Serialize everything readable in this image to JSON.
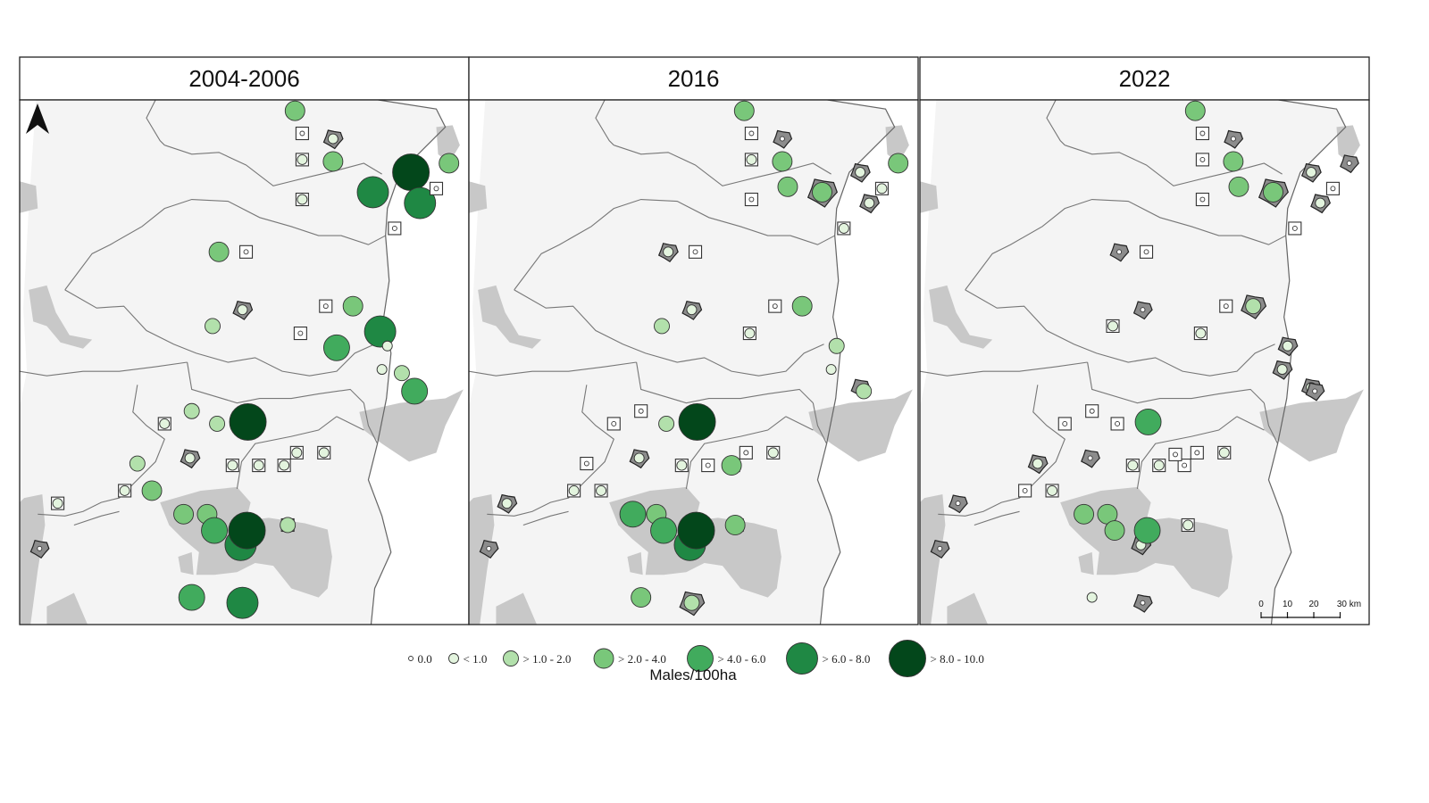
{
  "panels": [
    {
      "title": "2004-2006",
      "sites": [
        {
          "id": "n1",
          "cls": 3
        },
        {
          "id": "n2",
          "cls": 0,
          "box": true
        },
        {
          "id": "n3",
          "cls": 1,
          "poly": true
        },
        {
          "id": "n4",
          "cls": 1,
          "box": true
        },
        {
          "id": "n5",
          "cls": 3
        },
        {
          "id": "n6",
          "cls": 6
        },
        {
          "id": "n7",
          "cls": 3
        },
        {
          "id": "n8",
          "cls": 5
        },
        {
          "id": "n9",
          "cls": 5
        },
        {
          "id": "n10",
          "cls": 0,
          "box": true
        },
        {
          "id": "n11",
          "cls": 1,
          "box": true
        },
        {
          "id": "n12",
          "cls": 0,
          "box": true
        },
        {
          "id": "c1",
          "cls": 3
        },
        {
          "id": "c2",
          "cls": 0,
          "box": true
        },
        {
          "id": "c3",
          "cls": 1,
          "poly": true
        },
        {
          "id": "c4",
          "cls": 2
        },
        {
          "id": "c5",
          "cls": 0,
          "box": true
        },
        {
          "id": "c6",
          "cls": 3
        },
        {
          "id": "c7",
          "cls": 0,
          "box": true
        },
        {
          "id": "c8",
          "cls": 4
        },
        {
          "id": "e1",
          "cls": 5
        },
        {
          "id": "e2",
          "cls": 1
        },
        {
          "id": "e3",
          "cls": 1
        },
        {
          "id": "e4",
          "cls": 2
        },
        {
          "id": "e5",
          "cls": 4
        },
        {
          "id": "s1",
          "cls": 1,
          "box": true
        },
        {
          "id": "s2",
          "cls": 2
        },
        {
          "id": "s3",
          "cls": 2
        },
        {
          "id": "s4",
          "cls": 6
        },
        {
          "id": "s5",
          "cls": 2
        },
        {
          "id": "s6",
          "cls": 1,
          "poly": true
        },
        {
          "id": "s7",
          "cls": 1,
          "box": true
        },
        {
          "id": "s8",
          "cls": 1,
          "box": true
        },
        {
          "id": "s9",
          "cls": 1,
          "box": true
        },
        {
          "id": "s10",
          "cls": 1,
          "box": true
        },
        {
          "id": "s11",
          "cls": 1,
          "box": true
        },
        {
          "id": "s12",
          "cls": 1,
          "box": true
        },
        {
          "id": "s13",
          "cls": 3
        },
        {
          "id": "w1",
          "cls": 1,
          "box": true
        },
        {
          "id": "b1",
          "cls": 3
        },
        {
          "id": "b2",
          "cls": 3
        },
        {
          "id": "b3",
          "cls": 4
        },
        {
          "id": "b4",
          "cls": 5
        },
        {
          "id": "b5",
          "cls": 6
        },
        {
          "id": "b6",
          "cls": 2,
          "box": true
        },
        {
          "id": "w2",
          "cls": 0,
          "poly": true
        },
        {
          "id": "b7",
          "cls": 4
        },
        {
          "id": "b8",
          "cls": 5
        }
      ]
    },
    {
      "title": "2016",
      "sites": [
        {
          "id": "n1",
          "cls": 3
        },
        {
          "id": "n2",
          "cls": 0,
          "box": true
        },
        {
          "id": "n3",
          "cls": 0,
          "poly": true
        },
        {
          "id": "n4",
          "cls": 1,
          "box": true
        },
        {
          "id": "n5",
          "cls": 3
        },
        {
          "id": "n7",
          "cls": 3
        },
        {
          "id": "n8",
          "cls": 3,
          "poly": true
        },
        {
          "id": "n13",
          "cls": 3
        },
        {
          "id": "n9",
          "cls": 1,
          "poly": true
        },
        {
          "id": "n6",
          "cls": 1,
          "poly": true
        },
        {
          "id": "n14",
          "cls": 1,
          "box": true
        },
        {
          "id": "n11",
          "cls": 0,
          "box": true
        },
        {
          "id": "n12",
          "cls": 1,
          "box": true
        },
        {
          "id": "c1",
          "cls": 1,
          "poly": true
        },
        {
          "id": "c2",
          "cls": 0,
          "box": true
        },
        {
          "id": "c3",
          "cls": 1,
          "poly": true
        },
        {
          "id": "c4",
          "cls": 2
        },
        {
          "id": "c5",
          "cls": 0,
          "box": true
        },
        {
          "id": "c6",
          "cls": 3
        },
        {
          "id": "c7",
          "cls": 1,
          "box": true
        },
        {
          "id": "e2",
          "cls": 2
        },
        {
          "id": "e3",
          "cls": 1
        },
        {
          "id": "e6",
          "cls": 0,
          "poly": true
        },
        {
          "id": "e5",
          "cls": 2
        },
        {
          "id": "s1",
          "cls": 0,
          "box": true
        },
        {
          "id": "s2",
          "cls": 0,
          "box": true
        },
        {
          "id": "s3",
          "cls": 2
        },
        {
          "id": "s4",
          "cls": 6
        },
        {
          "id": "s5",
          "cls": 0,
          "box": true
        },
        {
          "id": "s6",
          "cls": 1,
          "poly": true
        },
        {
          "id": "s7",
          "cls": 1,
          "box": true
        },
        {
          "id": "s8",
          "cls": 0,
          "box": true
        },
        {
          "id": "s9",
          "cls": 0,
          "box": true
        },
        {
          "id": "s10",
          "cls": 0,
          "box": true
        },
        {
          "id": "s11",
          "cls": 1,
          "box": true
        },
        {
          "id": "s14",
          "cls": 3
        },
        {
          "id": "s12",
          "cls": 1,
          "box": true
        },
        {
          "id": "s13",
          "cls": 1,
          "box": true
        },
        {
          "id": "w1",
          "cls": 1,
          "poly": true
        },
        {
          "id": "b1",
          "cls": 4
        },
        {
          "id": "b2",
          "cls": 3
        },
        {
          "id": "b3",
          "cls": 4
        },
        {
          "id": "b4",
          "cls": 5
        },
        {
          "id": "b5",
          "cls": 6
        },
        {
          "id": "b6",
          "cls": 1,
          "box": true
        },
        {
          "id": "b9",
          "cls": 3
        },
        {
          "id": "w2",
          "cls": 0,
          "poly": true
        },
        {
          "id": "b7",
          "cls": 3
        },
        {
          "id": "b8",
          "cls": 2,
          "poly": true
        }
      ]
    },
    {
      "title": "2022",
      "sites": [
        {
          "id": "n1",
          "cls": 3
        },
        {
          "id": "n2",
          "cls": 0,
          "box": true
        },
        {
          "id": "n3",
          "cls": 0,
          "poly": true
        },
        {
          "id": "n4",
          "cls": 0,
          "box": true
        },
        {
          "id": "n5",
          "cls": 3
        },
        {
          "id": "n7",
          "cls": 0,
          "poly": true
        },
        {
          "id": "n8",
          "cls": 3,
          "poly": true
        },
        {
          "id": "n13",
          "cls": 3
        },
        {
          "id": "n9",
          "cls": 1,
          "poly": true
        },
        {
          "id": "n6",
          "cls": 1,
          "poly": true
        },
        {
          "id": "n14",
          "cls": 0,
          "box": true
        },
        {
          "id": "n11",
          "cls": 0,
          "box": true
        },
        {
          "id": "n12",
          "cls": 0,
          "box": true
        },
        {
          "id": "c1",
          "cls": 0,
          "poly": true
        },
        {
          "id": "c2",
          "cls": 0,
          "box": true
        },
        {
          "id": "c3",
          "cls": 0,
          "poly": true
        },
        {
          "id": "c4",
          "cls": 1,
          "box": true
        },
        {
          "id": "c5",
          "cls": 0,
          "box": true
        },
        {
          "id": "c6",
          "cls": 2,
          "poly": true
        },
        {
          "id": "c7",
          "cls": 1,
          "box": true
        },
        {
          "id": "e2",
          "cls": 1,
          "poly": true
        },
        {
          "id": "e3",
          "cls": 1,
          "poly": true
        },
        {
          "id": "e6",
          "cls": 1,
          "poly": true
        },
        {
          "id": "e5",
          "cls": 0,
          "poly": true
        },
        {
          "id": "s1",
          "cls": 0,
          "box": true
        },
        {
          "id": "s2",
          "cls": 0,
          "box": true
        },
        {
          "id": "s3",
          "cls": 0,
          "box": true
        },
        {
          "id": "s4",
          "cls": 4
        },
        {
          "id": "s5",
          "cls": 1,
          "poly": true
        },
        {
          "id": "s6",
          "cls": 0,
          "poly": true
        },
        {
          "id": "s7",
          "cls": 1,
          "box": true
        },
        {
          "id": "s8",
          "cls": 1,
          "box": true
        },
        {
          "id": "s9",
          "cls": 0,
          "box": true
        },
        {
          "id": "s10",
          "cls": 0,
          "box": true
        },
        {
          "id": "s11",
          "cls": 1,
          "box": true
        },
        {
          "id": "s12",
          "cls": 0,
          "box": true
        },
        {
          "id": "s13",
          "cls": 1,
          "box": true
        },
        {
          "id": "s15",
          "cls": 0,
          "box": true
        },
        {
          "id": "w1",
          "cls": 0,
          "poly": true
        },
        {
          "id": "b1",
          "cls": 3
        },
        {
          "id": "b2",
          "cls": 3
        },
        {
          "id": "b3",
          "cls": 3
        },
        {
          "id": "b4",
          "cls": 1,
          "poly": true
        },
        {
          "id": "b5",
          "cls": 4
        },
        {
          "id": "b6",
          "cls": 1,
          "box": true
        },
        {
          "id": "w2",
          "cls": 0,
          "poly": true
        },
        {
          "id": "b7",
          "cls": 1
        },
        {
          "id": "b8",
          "cls": 0,
          "poly": true
        }
      ]
    }
  ],
  "legend": {
    "classes": [
      "0.0",
      "< 1.0",
      "> 1.0 - 2.0",
      "> 2.0 - 4.0",
      "> 4.0 - 6.0",
      "> 6.0 - 8.0",
      "> 8.0 - 10.0"
    ],
    "colors": [
      "#ffffff",
      "#e3f4de",
      "#b2e0ab",
      "#79c77a",
      "#41ab5d",
      "#1f8844",
      "#03471b"
    ],
    "unit": "Males/100ha"
  },
  "scalebar": {
    "ticks": [
      "0",
      "10",
      "20",
      "30 km"
    ]
  },
  "north_arrow": "north-arrow-icon",
  "map_colors": {
    "land": "#f4f4f4",
    "protected_area": "#c8c8c8",
    "border": "#666666"
  }
}
